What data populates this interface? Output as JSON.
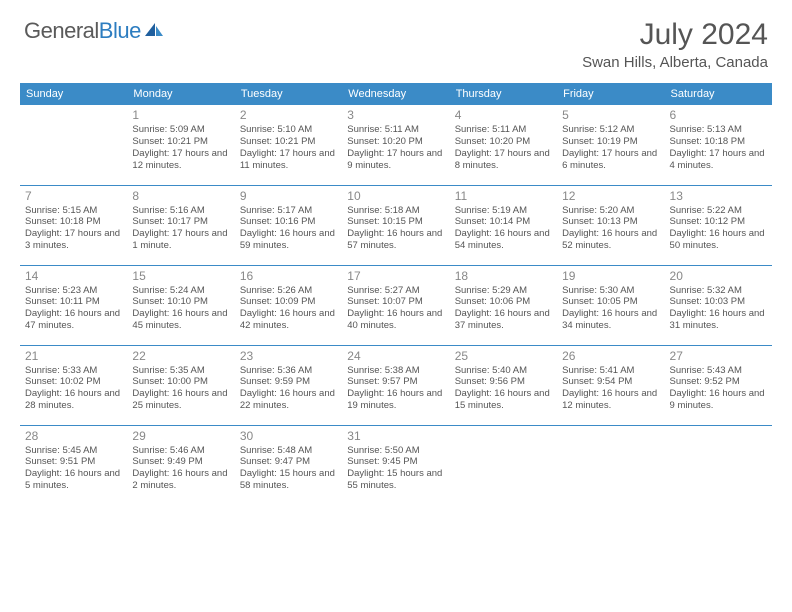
{
  "logo": {
    "text_general": "General",
    "text_blue": "Blue"
  },
  "header": {
    "month": "July 2024",
    "location": "Swan Hills, Alberta, Canada"
  },
  "weekdays": [
    "Sunday",
    "Monday",
    "Tuesday",
    "Wednesday",
    "Thursday",
    "Friday",
    "Saturday"
  ],
  "colors": {
    "header_bg": "#3b8bc7",
    "header_text": "#ffffff",
    "text": "#555555",
    "daynum": "#888888",
    "row_divider": "#3b8bc7"
  },
  "weeks": [
    [
      {
        "day": ""
      },
      {
        "day": "1",
        "sunrise": "Sunrise: 5:09 AM",
        "sunset": "Sunset: 10:21 PM",
        "daylight": "Daylight: 17 hours and 12 minutes."
      },
      {
        "day": "2",
        "sunrise": "Sunrise: 5:10 AM",
        "sunset": "Sunset: 10:21 PM",
        "daylight": "Daylight: 17 hours and 11 minutes."
      },
      {
        "day": "3",
        "sunrise": "Sunrise: 5:11 AM",
        "sunset": "Sunset: 10:20 PM",
        "daylight": "Daylight: 17 hours and 9 minutes."
      },
      {
        "day": "4",
        "sunrise": "Sunrise: 5:11 AM",
        "sunset": "Sunset: 10:20 PM",
        "daylight": "Daylight: 17 hours and 8 minutes."
      },
      {
        "day": "5",
        "sunrise": "Sunrise: 5:12 AM",
        "sunset": "Sunset: 10:19 PM",
        "daylight": "Daylight: 17 hours and 6 minutes."
      },
      {
        "day": "6",
        "sunrise": "Sunrise: 5:13 AM",
        "sunset": "Sunset: 10:18 PM",
        "daylight": "Daylight: 17 hours and 4 minutes."
      }
    ],
    [
      {
        "day": "7",
        "sunrise": "Sunrise: 5:15 AM",
        "sunset": "Sunset: 10:18 PM",
        "daylight": "Daylight: 17 hours and 3 minutes."
      },
      {
        "day": "8",
        "sunrise": "Sunrise: 5:16 AM",
        "sunset": "Sunset: 10:17 PM",
        "daylight": "Daylight: 17 hours and 1 minute."
      },
      {
        "day": "9",
        "sunrise": "Sunrise: 5:17 AM",
        "sunset": "Sunset: 10:16 PM",
        "daylight": "Daylight: 16 hours and 59 minutes."
      },
      {
        "day": "10",
        "sunrise": "Sunrise: 5:18 AM",
        "sunset": "Sunset: 10:15 PM",
        "daylight": "Daylight: 16 hours and 57 minutes."
      },
      {
        "day": "11",
        "sunrise": "Sunrise: 5:19 AM",
        "sunset": "Sunset: 10:14 PM",
        "daylight": "Daylight: 16 hours and 54 minutes."
      },
      {
        "day": "12",
        "sunrise": "Sunrise: 5:20 AM",
        "sunset": "Sunset: 10:13 PM",
        "daylight": "Daylight: 16 hours and 52 minutes."
      },
      {
        "day": "13",
        "sunrise": "Sunrise: 5:22 AM",
        "sunset": "Sunset: 10:12 PM",
        "daylight": "Daylight: 16 hours and 50 minutes."
      }
    ],
    [
      {
        "day": "14",
        "sunrise": "Sunrise: 5:23 AM",
        "sunset": "Sunset: 10:11 PM",
        "daylight": "Daylight: 16 hours and 47 minutes."
      },
      {
        "day": "15",
        "sunrise": "Sunrise: 5:24 AM",
        "sunset": "Sunset: 10:10 PM",
        "daylight": "Daylight: 16 hours and 45 minutes."
      },
      {
        "day": "16",
        "sunrise": "Sunrise: 5:26 AM",
        "sunset": "Sunset: 10:09 PM",
        "daylight": "Daylight: 16 hours and 42 minutes."
      },
      {
        "day": "17",
        "sunrise": "Sunrise: 5:27 AM",
        "sunset": "Sunset: 10:07 PM",
        "daylight": "Daylight: 16 hours and 40 minutes."
      },
      {
        "day": "18",
        "sunrise": "Sunrise: 5:29 AM",
        "sunset": "Sunset: 10:06 PM",
        "daylight": "Daylight: 16 hours and 37 minutes."
      },
      {
        "day": "19",
        "sunrise": "Sunrise: 5:30 AM",
        "sunset": "Sunset: 10:05 PM",
        "daylight": "Daylight: 16 hours and 34 minutes."
      },
      {
        "day": "20",
        "sunrise": "Sunrise: 5:32 AM",
        "sunset": "Sunset: 10:03 PM",
        "daylight": "Daylight: 16 hours and 31 minutes."
      }
    ],
    [
      {
        "day": "21",
        "sunrise": "Sunrise: 5:33 AM",
        "sunset": "Sunset: 10:02 PM",
        "daylight": "Daylight: 16 hours and 28 minutes."
      },
      {
        "day": "22",
        "sunrise": "Sunrise: 5:35 AM",
        "sunset": "Sunset: 10:00 PM",
        "daylight": "Daylight: 16 hours and 25 minutes."
      },
      {
        "day": "23",
        "sunrise": "Sunrise: 5:36 AM",
        "sunset": "Sunset: 9:59 PM",
        "daylight": "Daylight: 16 hours and 22 minutes."
      },
      {
        "day": "24",
        "sunrise": "Sunrise: 5:38 AM",
        "sunset": "Sunset: 9:57 PM",
        "daylight": "Daylight: 16 hours and 19 minutes."
      },
      {
        "day": "25",
        "sunrise": "Sunrise: 5:40 AM",
        "sunset": "Sunset: 9:56 PM",
        "daylight": "Daylight: 16 hours and 15 minutes."
      },
      {
        "day": "26",
        "sunrise": "Sunrise: 5:41 AM",
        "sunset": "Sunset: 9:54 PM",
        "daylight": "Daylight: 16 hours and 12 minutes."
      },
      {
        "day": "27",
        "sunrise": "Sunrise: 5:43 AM",
        "sunset": "Sunset: 9:52 PM",
        "daylight": "Daylight: 16 hours and 9 minutes."
      }
    ],
    [
      {
        "day": "28",
        "sunrise": "Sunrise: 5:45 AM",
        "sunset": "Sunset: 9:51 PM",
        "daylight": "Daylight: 16 hours and 5 minutes."
      },
      {
        "day": "29",
        "sunrise": "Sunrise: 5:46 AM",
        "sunset": "Sunset: 9:49 PM",
        "daylight": "Daylight: 16 hours and 2 minutes."
      },
      {
        "day": "30",
        "sunrise": "Sunrise: 5:48 AM",
        "sunset": "Sunset: 9:47 PM",
        "daylight": "Daylight: 15 hours and 58 minutes."
      },
      {
        "day": "31",
        "sunrise": "Sunrise: 5:50 AM",
        "sunset": "Sunset: 9:45 PM",
        "daylight": "Daylight: 15 hours and 55 minutes."
      },
      {
        "day": ""
      },
      {
        "day": ""
      },
      {
        "day": ""
      }
    ]
  ]
}
